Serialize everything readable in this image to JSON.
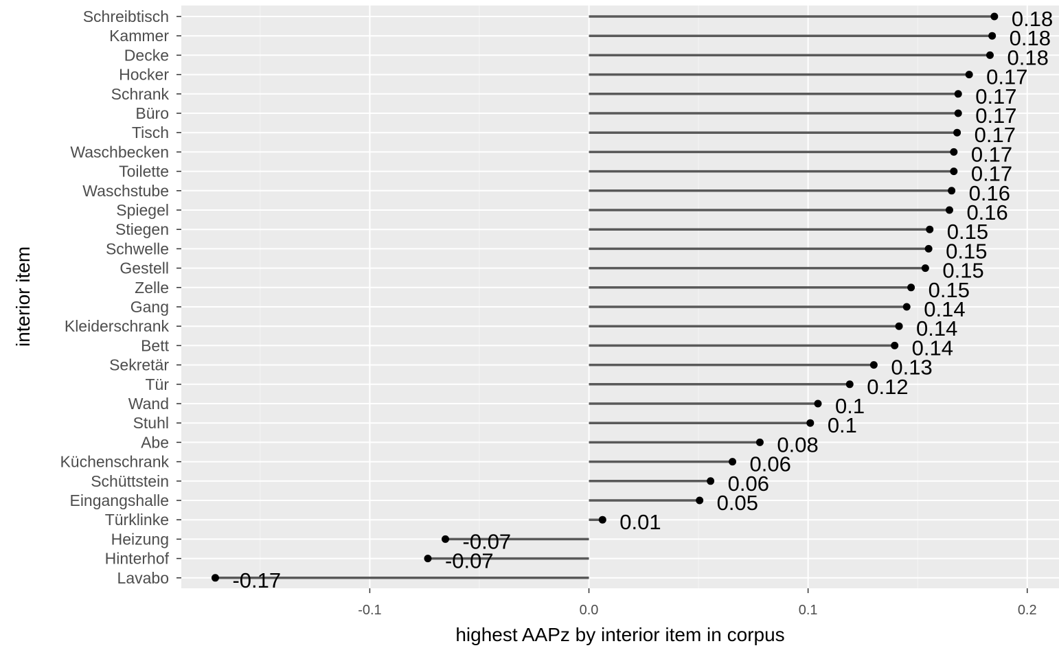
{
  "chart_data": {
    "type": "lollipop",
    "xlabel": "highest AAPz by interior item in corpus",
    "ylabel": "interior item",
    "xlim": [
      -0.186,
      0.2145
    ],
    "x_ticks": [
      -0.1,
      0.0,
      0.1,
      0.2
    ],
    "x_tick_labels": [
      "-0.1",
      "0.0",
      "0.1",
      "0.2"
    ],
    "grid": true,
    "items": [
      {
        "label": "Schreibtisch",
        "value": 0.185,
        "value_label": "0.18"
      },
      {
        "label": "Kammer",
        "value": 0.184,
        "value_label": "0.18"
      },
      {
        "label": "Decke",
        "value": 0.183,
        "value_label": "0.18"
      },
      {
        "label": "Hocker",
        "value": 0.1735,
        "value_label": "0.17"
      },
      {
        "label": "Schrank",
        "value": 0.1685,
        "value_label": "0.17"
      },
      {
        "label": "Büro",
        "value": 0.1685,
        "value_label": "0.17"
      },
      {
        "label": "Tisch",
        "value": 0.168,
        "value_label": "0.17"
      },
      {
        "label": "Waschbecken",
        "value": 0.1665,
        "value_label": "0.17"
      },
      {
        "label": "Toilette",
        "value": 0.1665,
        "value_label": "0.17"
      },
      {
        "label": "Waschstube",
        "value": 0.1655,
        "value_label": "0.16"
      },
      {
        "label": "Spiegel",
        "value": 0.1645,
        "value_label": "0.16"
      },
      {
        "label": "Stiegen",
        "value": 0.1555,
        "value_label": "0.15"
      },
      {
        "label": "Schwelle",
        "value": 0.155,
        "value_label": "0.15"
      },
      {
        "label": "Gestell",
        "value": 0.1535,
        "value_label": "0.15"
      },
      {
        "label": "Zelle",
        "value": 0.147,
        "value_label": "0.15"
      },
      {
        "label": "Gang",
        "value": 0.145,
        "value_label": "0.14"
      },
      {
        "label": "Kleiderschrank",
        "value": 0.1415,
        "value_label": "0.14"
      },
      {
        "label": "Bett",
        "value": 0.1395,
        "value_label": "0.14"
      },
      {
        "label": "Sekretär",
        "value": 0.13,
        "value_label": "0.13"
      },
      {
        "label": "Tür",
        "value": 0.119,
        "value_label": "0.12"
      },
      {
        "label": "Wand",
        "value": 0.1045,
        "value_label": "0.1"
      },
      {
        "label": "Stuhl",
        "value": 0.101,
        "value_label": "0.1"
      },
      {
        "label": "Abe",
        "value": 0.078,
        "value_label": "0.08"
      },
      {
        "label": "Küchenschrank",
        "value": 0.0655,
        "value_label": "0.06"
      },
      {
        "label": "Schüttstein",
        "value": 0.0555,
        "value_label": "0.06"
      },
      {
        "label": "Eingangshalle",
        "value": 0.0505,
        "value_label": "0.05"
      },
      {
        "label": "Türklinke",
        "value": 0.0062,
        "value_label": "0.01"
      },
      {
        "label": "Heizung",
        "value": -0.0655,
        "value_label": "-0.07"
      },
      {
        "label": "Hinterhof",
        "value": -0.0735,
        "value_label": "-0.07"
      },
      {
        "label": "Lavabo",
        "value": -0.1705,
        "value_label": "-0.17"
      }
    ]
  }
}
